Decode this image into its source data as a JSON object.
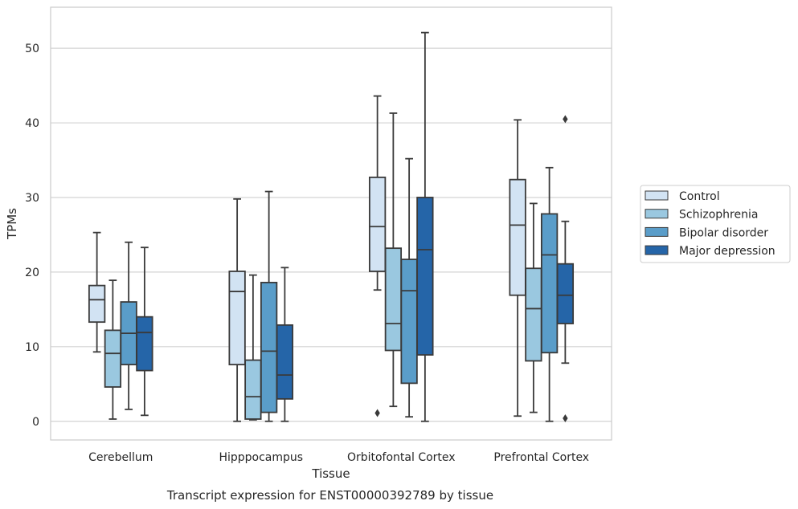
{
  "chart_data": {
    "type": "boxplot",
    "title": "Transcript expression for ENST00000392789 by tissue",
    "xlabel": "Tissue",
    "ylabel": "TPMs",
    "ylim": [
      -2.5,
      55.5
    ],
    "yticks": [
      0,
      10,
      20,
      30,
      40,
      50
    ],
    "grid": true,
    "legend_position": "right",
    "categories": [
      "Cerebellum",
      "Hipppocampus",
      "Orbitofontal Cortex",
      "Prefrontal Cortex"
    ],
    "series": [
      {
        "name": "Control",
        "color": "#d2e3f3",
        "boxes": [
          {
            "whisker_low": 9.3,
            "q1": 13.3,
            "median": 16.3,
            "q3": 18.2,
            "whisker_high": 25.3,
            "outliers": []
          },
          {
            "whisker_low": 0.0,
            "q1": 7.6,
            "median": 17.4,
            "q3": 20.1,
            "whisker_high": 29.8,
            "outliers": []
          },
          {
            "whisker_low": 17.6,
            "q1": 20.1,
            "median": 26.1,
            "q3": 32.7,
            "whisker_high": 43.6,
            "outliers": [
              1.1
            ]
          },
          {
            "whisker_low": 0.7,
            "q1": 16.9,
            "median": 26.3,
            "q3": 32.4,
            "whisker_high": 40.4,
            "outliers": []
          }
        ]
      },
      {
        "name": "Schizophrenia",
        "color": "#9ac8e0",
        "boxes": [
          {
            "whisker_low": 0.3,
            "q1": 4.6,
            "median": 9.1,
            "q3": 12.2,
            "whisker_high": 18.9,
            "outliers": []
          },
          {
            "whisker_low": 0.2,
            "q1": 0.3,
            "median": 3.3,
            "q3": 8.2,
            "whisker_high": 19.6,
            "outliers": []
          },
          {
            "whisker_low": 2.0,
            "q1": 9.5,
            "median": 13.1,
            "q3": 23.2,
            "whisker_high": 41.3,
            "outliers": []
          },
          {
            "whisker_low": 1.2,
            "q1": 8.1,
            "median": 15.1,
            "q3": 20.5,
            "whisker_high": 29.2,
            "outliers": []
          }
        ]
      },
      {
        "name": "Bipolar disorder",
        "color": "#5a9dc9",
        "boxes": [
          {
            "whisker_low": 1.6,
            "q1": 7.6,
            "median": 11.8,
            "q3": 16.0,
            "whisker_high": 24.0,
            "outliers": []
          },
          {
            "whisker_low": 0.0,
            "q1": 1.2,
            "median": 9.4,
            "q3": 18.6,
            "whisker_high": 30.8,
            "outliers": []
          },
          {
            "whisker_low": 0.6,
            "q1": 5.1,
            "median": 17.5,
            "q3": 21.7,
            "whisker_high": 35.2,
            "outliers": []
          },
          {
            "whisker_low": 0.0,
            "q1": 9.2,
            "median": 22.3,
            "q3": 27.8,
            "whisker_high": 34.0,
            "outliers": []
          }
        ]
      },
      {
        "name": "Major depression",
        "color": "#2565a8",
        "boxes": [
          {
            "whisker_low": 0.8,
            "q1": 6.8,
            "median": 11.9,
            "q3": 14.0,
            "whisker_high": 23.3,
            "outliers": []
          },
          {
            "whisker_low": 0.0,
            "q1": 3.0,
            "median": 6.2,
            "q3": 12.9,
            "whisker_high": 20.6,
            "outliers": []
          },
          {
            "whisker_low": 0.0,
            "q1": 8.9,
            "median": 23.0,
            "q3": 30.0,
            "whisker_high": 52.1,
            "outliers": []
          },
          {
            "whisker_low": 7.8,
            "q1": 13.1,
            "median": 16.9,
            "q3": 21.1,
            "whisker_high": 26.8,
            "outliers": [
              0.4,
              40.5
            ]
          }
        ]
      }
    ]
  }
}
